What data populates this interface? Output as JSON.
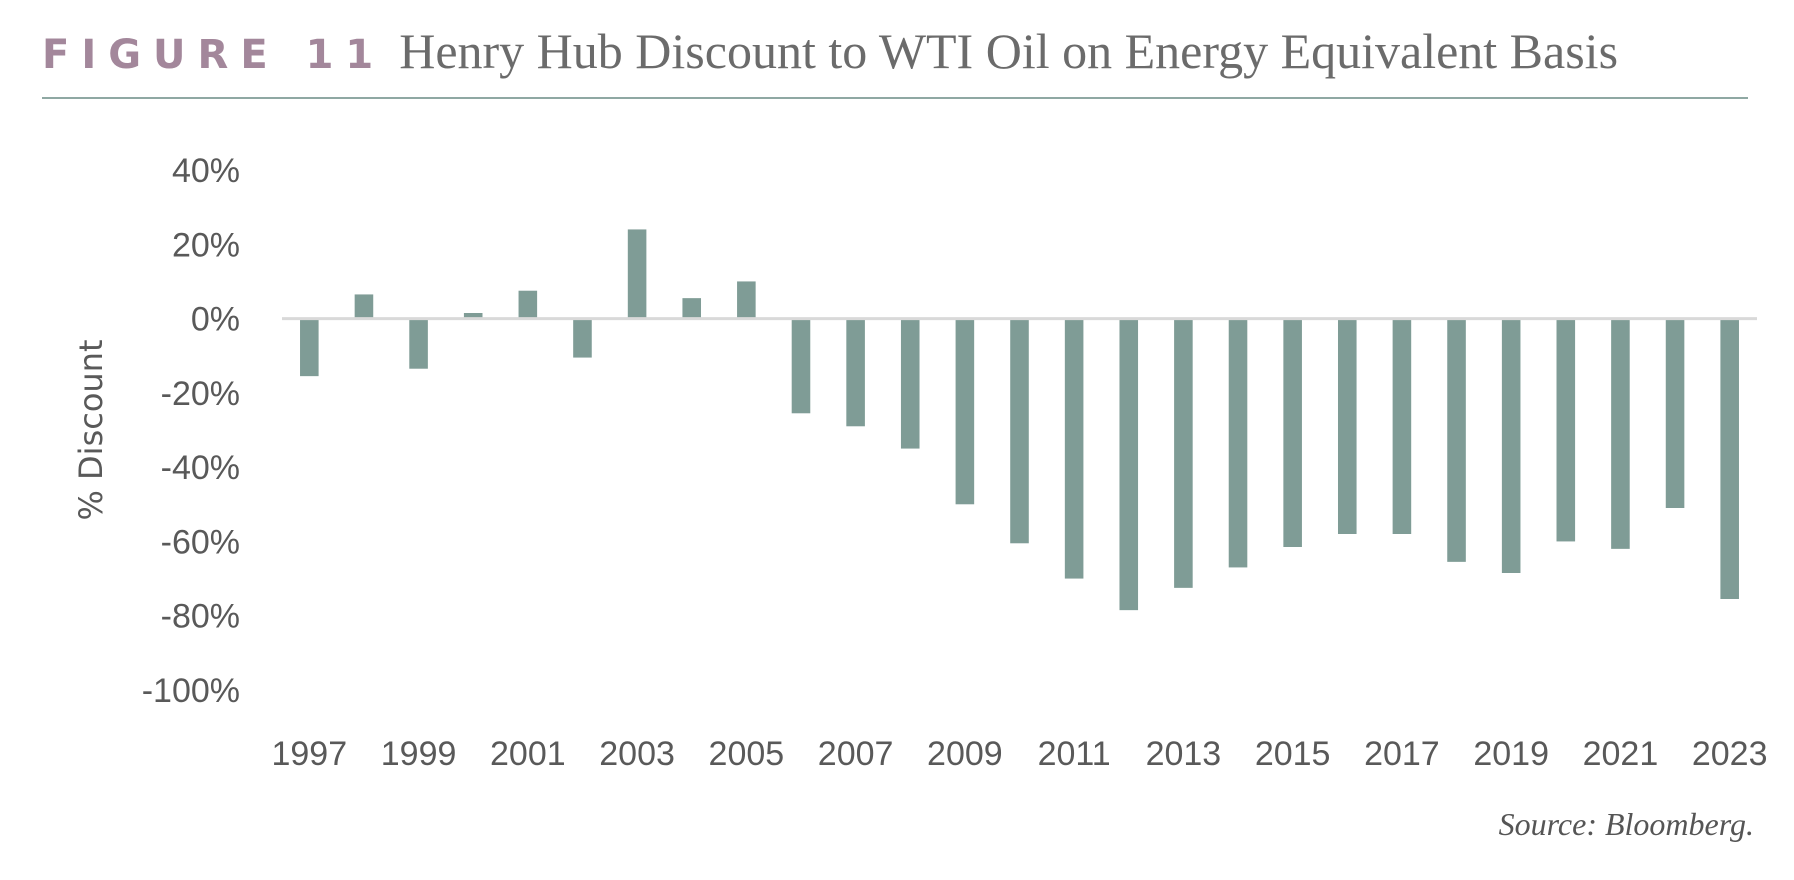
{
  "header": {
    "figure_label": "FIGURE 11",
    "title": "Henry Hub Discount to WTI Oil on Energy Equivalent Basis"
  },
  "source": "Source: Bloomberg.",
  "colors": {
    "bar": "#7f9c96",
    "figure_label": "#a3879b",
    "rule": "#8fa8a3"
  },
  "chart_data": {
    "type": "bar",
    "title": "Henry Hub Discount to WTI Oil on Energy Equivalent Basis",
    "ylabel": "% Discount",
    "xlabel": "",
    "ylim": [
      -100,
      40
    ],
    "yticks": [
      "40%",
      "20%",
      "0%",
      "-20%",
      "-40%",
      "-60%",
      "-80%",
      "-100%"
    ],
    "ytick_values": [
      40,
      20,
      0,
      -20,
      -40,
      -60,
      -80,
      -100
    ],
    "xtick_labels": [
      "1997",
      "1999",
      "2001",
      "2003",
      "2005",
      "2007",
      "2009",
      "2011",
      "2013",
      "2015",
      "2017",
      "2019",
      "2021",
      "2023"
    ],
    "grid": false,
    "categories": [
      "1997",
      "1998",
      "1999",
      "2000",
      "2001",
      "2002",
      "2003",
      "2004",
      "2005",
      "2006",
      "2007",
      "2008",
      "2009",
      "2010",
      "2011",
      "2012",
      "2013",
      "2014",
      "2015",
      "2016",
      "2017",
      "2018",
      "2019",
      "2020",
      "2021",
      "2022",
      "2023"
    ],
    "values": [
      -15.5,
      6.5,
      -13.5,
      1.5,
      7.5,
      -10.5,
      24,
      5.5,
      10,
      -25.5,
      -29,
      -35,
      -50,
      -60.5,
      -70,
      -78.5,
      -72.5,
      -67,
      -61.5,
      -58,
      -58,
      -65.5,
      -68.5,
      -60,
      -62,
      -51,
      -75.5
    ]
  }
}
